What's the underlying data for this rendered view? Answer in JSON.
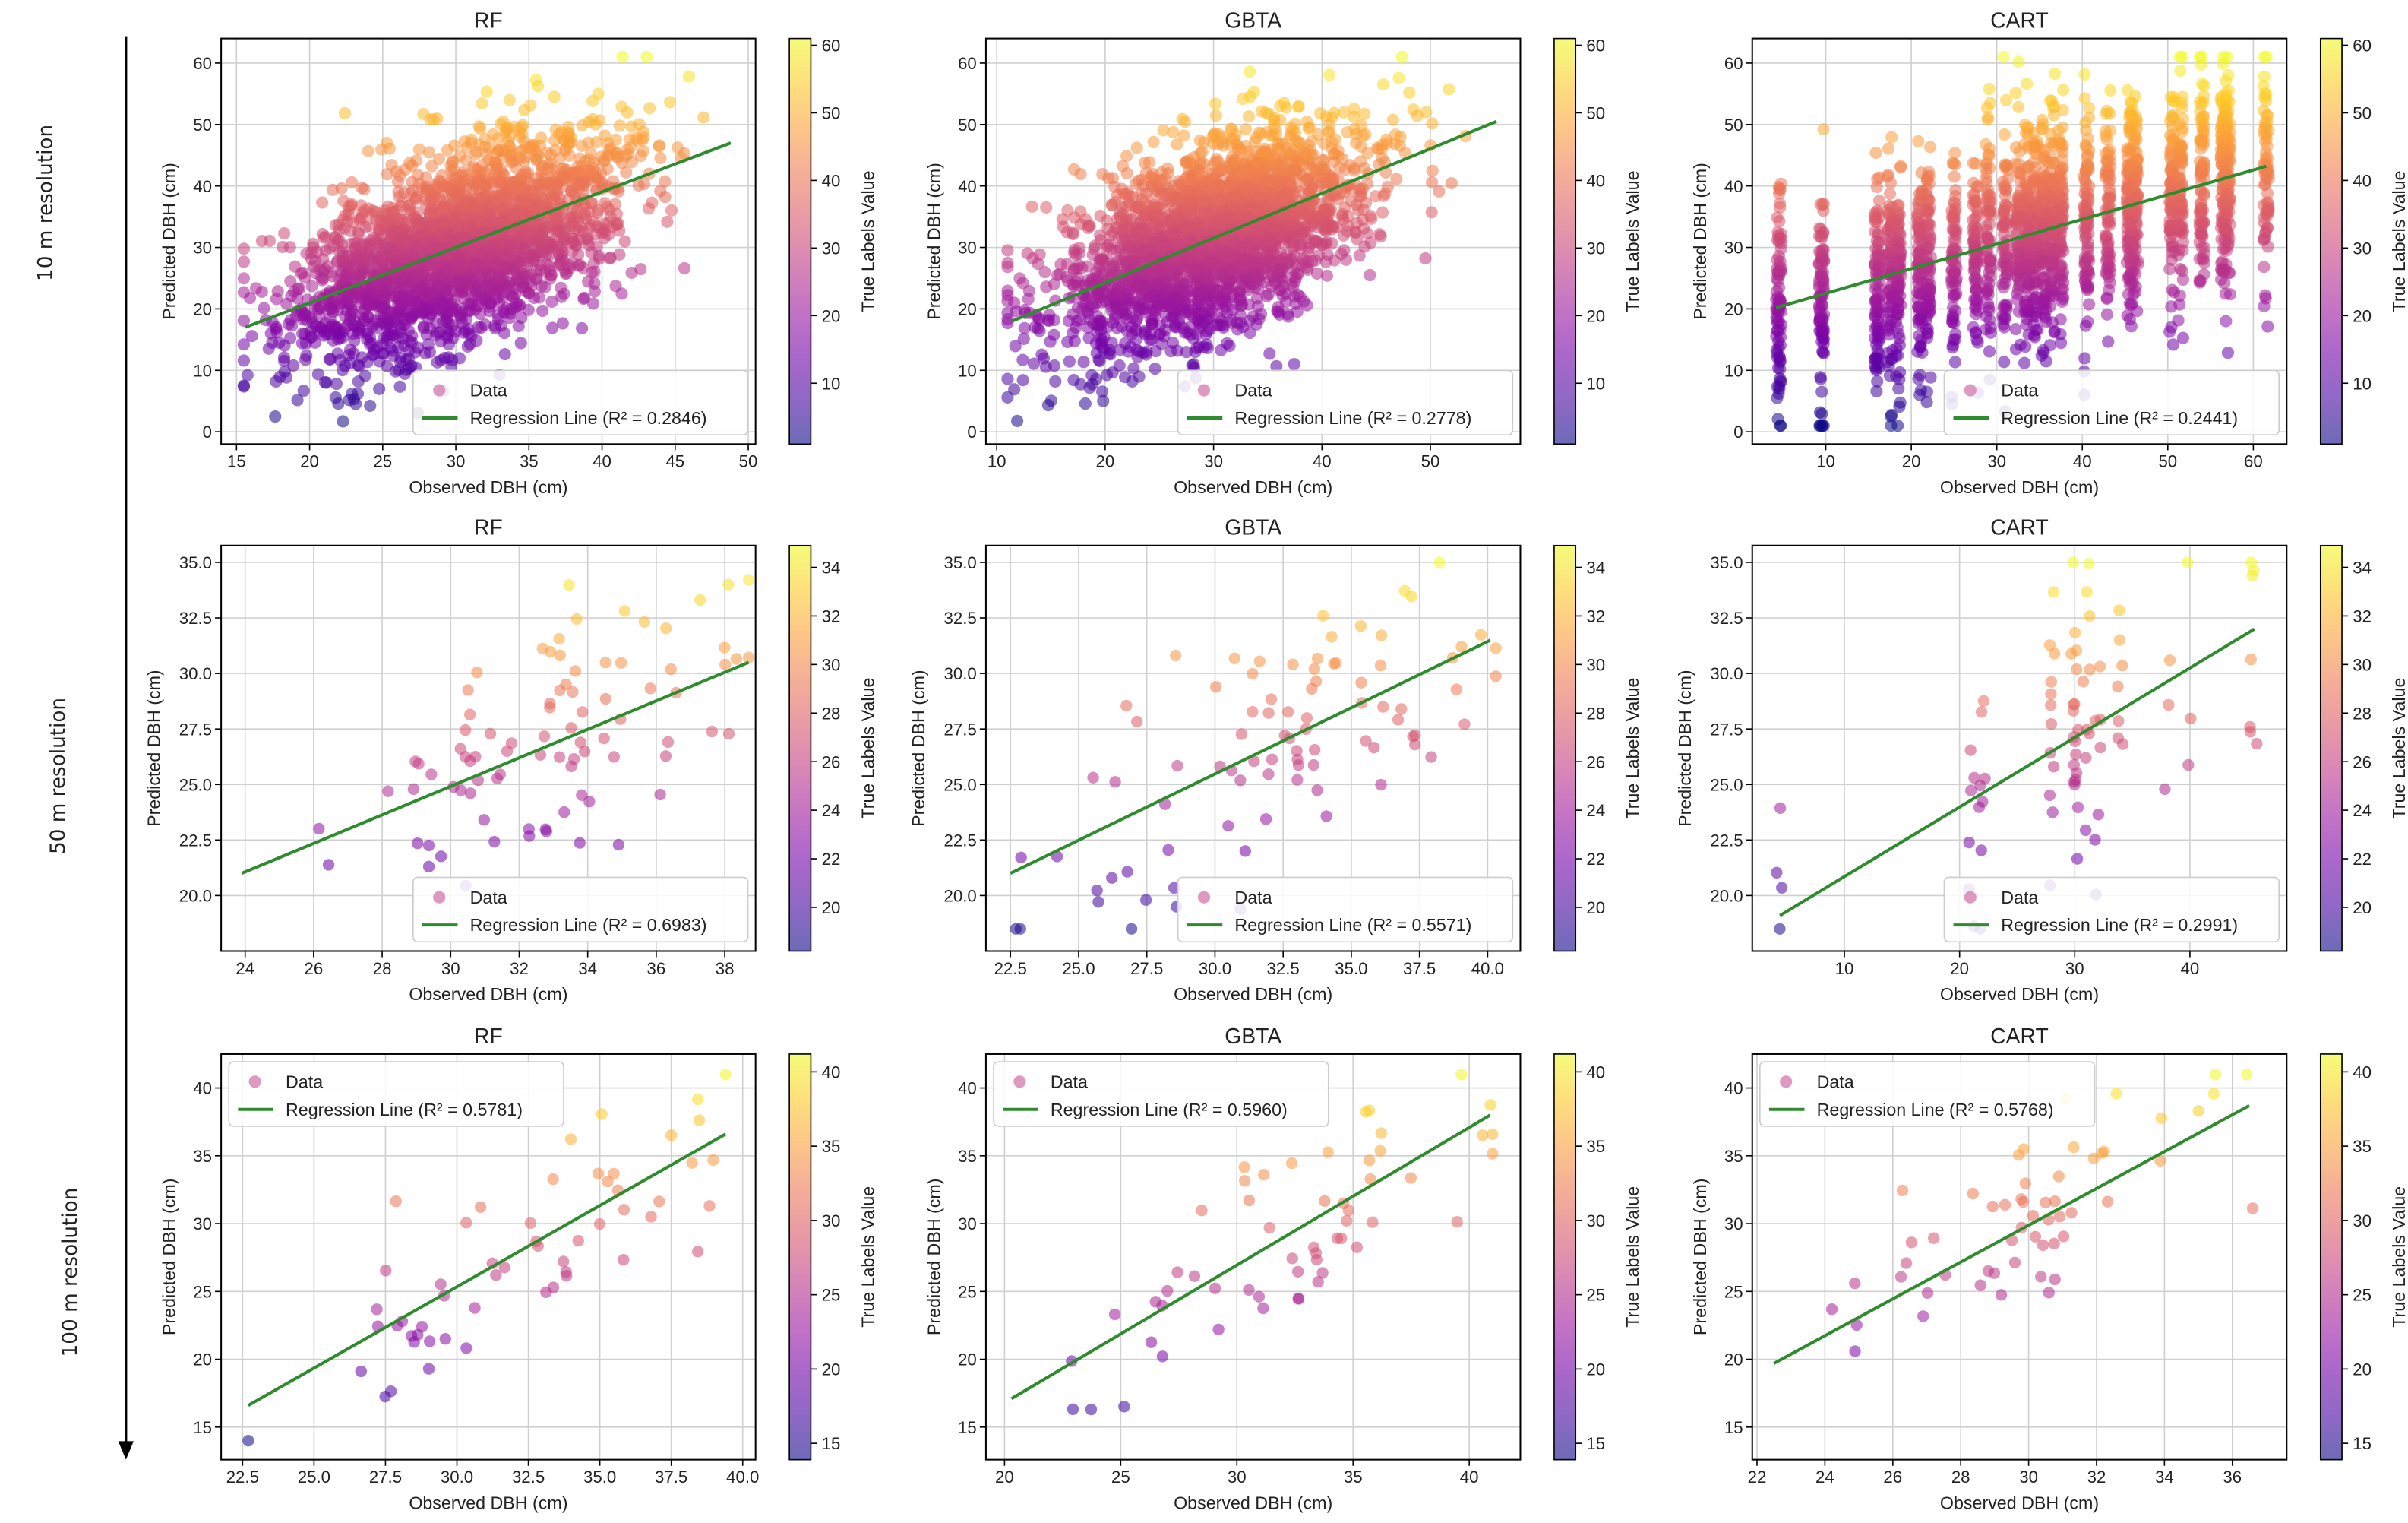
{
  "row_labels": [
    "10 m resolution",
    "50 m resolution",
    "100 m resolution"
  ],
  "colors": {
    "regression": "#2e8b2e",
    "grid": "#d0d0d0",
    "legend_marker": "#d77fb0"
  },
  "colormap": [
    "#0d0887",
    "#46039f",
    "#7201a8",
    "#9c179e",
    "#bd3786",
    "#d8576b",
    "#ed7953",
    "#fb9f3a",
    "#fdca26",
    "#f0f921"
  ],
  "chart_data": [
    {
      "type": "scatter",
      "row": 0,
      "col": 0,
      "title": "RF",
      "xlabel": "Observed DBH (cm)",
      "ylabel": "Predicted DBH (cm)",
      "colorbar_label": "True Labels Value",
      "xlim": [
        13.95,
        50.5
      ],
      "ylim": [
        -2,
        64
      ],
      "xticks": [
        15,
        20,
        25,
        30,
        35,
        40,
        45,
        50
      ],
      "yticks": [
        0,
        10,
        20,
        30,
        40,
        50,
        60
      ],
      "cbar_range": [
        1,
        61
      ],
      "cbar_ticks": [
        10,
        20,
        30,
        40,
        50,
        60
      ],
      "legend": {
        "placement": "lower-right",
        "data": "Data",
        "line": "Regression Line (R² = 0.2846)"
      },
      "r2": 0.2846,
      "regression": [
        [
          15.6,
          17.0
        ],
        [
          48.8,
          47.0
        ]
      ],
      "points_gen": {
        "n": 2500,
        "seed": 11,
        "x_mean": 30,
        "x_sd": 5.5,
        "x_range": [
          15.5,
          49
        ],
        "noise_sd": 7.5,
        "y_range": [
          1,
          61
        ]
      }
    },
    {
      "type": "scatter",
      "row": 0,
      "col": 1,
      "title": "GBTA",
      "xlabel": "Observed DBH (cm)",
      "ylabel": "Predicted DBH (cm)",
      "colorbar_label": "True Labels Value",
      "xlim": [
        9,
        58.3
      ],
      "ylim": [
        -2,
        64
      ],
      "xticks": [
        10,
        20,
        30,
        40,
        50
      ],
      "yticks": [
        0,
        10,
        20,
        30,
        40,
        50,
        60
      ],
      "cbar_range": [
        1,
        61
      ],
      "cbar_ticks": [
        10,
        20,
        30,
        40,
        50,
        60
      ],
      "legend": {
        "placement": "lower-right",
        "data": "Data",
        "line": "Regression Line (R² = 0.2778)"
      },
      "r2": 0.2778,
      "regression": [
        [
          11.4,
          18.0
        ],
        [
          56.1,
          50.5
        ]
      ],
      "points_gen": {
        "n": 2500,
        "seed": 22,
        "x_mean": 30,
        "x_sd": 7,
        "x_range": [
          11,
          56
        ],
        "noise_sd": 7.5,
        "y_range": [
          1,
          61
        ]
      }
    },
    {
      "type": "scatter",
      "row": 0,
      "col": 2,
      "title": "CART",
      "xlabel": "Observed DBH (cm)",
      "ylabel": "Predicted DBH (cm)",
      "colorbar_label": "True Labels Value",
      "xlim": [
        1.4,
        63.9
      ],
      "ylim": [
        -2,
        64
      ],
      "xticks": [
        10,
        20,
        30,
        40,
        50,
        60
      ],
      "yticks": [
        0,
        10,
        20,
        30,
        40,
        50,
        60
      ],
      "cbar_range": [
        1,
        61
      ],
      "cbar_ticks": [
        10,
        20,
        30,
        40,
        50,
        60
      ],
      "legend": {
        "placement": "lower-right",
        "data": "Data",
        "line": "Regression Line (R² = 0.2441)"
      },
      "r2": 0.2441,
      "regression": [
        [
          4.2,
          20.2
        ],
        [
          61.5,
          43.2
        ]
      ],
      "points_gen": {
        "n": 2200,
        "seed": 33,
        "x_levels": [
          4.5,
          9.5,
          16,
          17.5,
          18.5,
          21,
          22,
          25,
          27.5,
          29,
          31,
          32.5,
          33.5,
          34.5,
          35.5,
          36.5,
          37.5,
          40.5,
          43,
          45.5,
          46.2,
          50.5,
          51.5,
          54,
          56.5,
          57,
          61.5
        ],
        "x_mean": 32,
        "x_sd": 11,
        "noise_sd": 9,
        "y_range": [
          1,
          61
        ]
      }
    },
    {
      "type": "scatter",
      "row": 1,
      "col": 0,
      "title": "RF",
      "xlabel": "Observed DBH (cm)",
      "ylabel": "Predicted DBH (cm)",
      "colorbar_label": "True Labels Value",
      "xlim": [
        23.3,
        38.9
      ],
      "ylim": [
        17.5,
        35.76
      ],
      "xticks": [
        24,
        26,
        28,
        30,
        32,
        34,
        36,
        38
      ],
      "yticks": [
        20.0,
        22.5,
        25.0,
        27.5,
        30.0,
        32.5,
        35.0
      ],
      "ytick_fmt": 1,
      "cbar_range": [
        18.2,
        34.9
      ],
      "cbar_ticks": [
        20,
        22,
        24,
        26,
        28,
        30,
        32,
        34
      ],
      "legend": {
        "placement": "lower-right",
        "data": "Data",
        "line": "Regression Line (R² = 0.6983)"
      },
      "r2": 0.6983,
      "regression": [
        [
          23.9,
          21.0
        ],
        [
          38.7,
          30.5
        ]
      ],
      "points_gen": {
        "n": 85,
        "seed": 44,
        "x_mean": 32.5,
        "x_sd": 3.3,
        "x_range": [
          23.9,
          38.7
        ],
        "noise_sd": 2.8,
        "y_range": [
          18.5,
          35
        ]
      }
    },
    {
      "type": "scatter",
      "row": 1,
      "col": 1,
      "title": "GBTA",
      "xlabel": "Observed DBH (cm)",
      "ylabel": "Predicted DBH (cm)",
      "colorbar_label": "True Labels Value",
      "xlim": [
        21.6,
        41.2
      ],
      "ylim": [
        17.5,
        35.76
      ],
      "xticks": [
        22.5,
        25.0,
        27.5,
        30.0,
        32.5,
        35.0,
        37.5,
        40.0
      ],
      "xtick_fmt": 1,
      "yticks": [
        20.0,
        22.5,
        25.0,
        27.5,
        30.0,
        32.5,
        35.0
      ],
      "ytick_fmt": 1,
      "cbar_range": [
        18.2,
        34.9
      ],
      "cbar_ticks": [
        20,
        22,
        24,
        26,
        28,
        30,
        32,
        34
      ],
      "legend": {
        "placement": "lower-right",
        "data": "Data",
        "line": "Regression Line (R² = 0.5571)"
      },
      "r2": 0.5571,
      "regression": [
        [
          22.5,
          21.0
        ],
        [
          40.1,
          31.5
        ]
      ],
      "points_gen": {
        "n": 85,
        "seed": 55,
        "x_mean": 32,
        "x_sd": 3.8,
        "x_range": [
          22.3,
          40.3
        ],
        "noise_sd": 3,
        "y_range": [
          18.5,
          35
        ]
      }
    },
    {
      "type": "scatter",
      "row": 1,
      "col": 2,
      "title": "CART",
      "xlabel": "Observed DBH (cm)",
      "ylabel": "Predicted DBH (cm)",
      "colorbar_label": "True Labels Value",
      "xlim": [
        2.0,
        48.4
      ],
      "ylim": [
        17.5,
        35.76
      ],
      "xticks": [
        10,
        20,
        30,
        40
      ],
      "yticks": [
        20.0,
        22.5,
        25.0,
        27.5,
        30.0,
        32.5,
        35.0
      ],
      "ytick_fmt": 1,
      "cbar_range": [
        18.2,
        34.9
      ],
      "cbar_ticks": [
        20,
        22,
        24,
        26,
        28,
        30,
        32,
        34
      ],
      "legend": {
        "placement": "lower-right",
        "data": "Data",
        "line": "Regression Line (R² = 0.2991)"
      },
      "r2": 0.2991,
      "regression": [
        [
          4.4,
          19.1
        ],
        [
          45.6,
          32.0
        ]
      ],
      "points_gen": {
        "n": 85,
        "seed": 66,
        "x_levels": [
          4.4,
          21,
          22,
          28,
          28,
          30,
          30,
          30,
          31,
          32,
          34,
          38,
          40,
          45.5
        ],
        "x_mean": 30,
        "x_sd": 5,
        "noise_sd": 3,
        "y_range": [
          18.5,
          35
        ]
      }
    },
    {
      "type": "scatter",
      "row": 2,
      "col": 0,
      "title": "RF",
      "xlabel": "Observed DBH (cm)",
      "ylabel": "Predicted DBH (cm)",
      "colorbar_label": "True Labels Value",
      "xlim": [
        21.75,
        40.45
      ],
      "ylim": [
        12.6,
        42.5
      ],
      "xticks": [
        22.5,
        25.0,
        27.5,
        30.0,
        32.5,
        35.0,
        37.5,
        40.0
      ],
      "xtick_fmt": 1,
      "yticks": [
        15,
        20,
        25,
        30,
        35,
        40
      ],
      "cbar_range": [
        13.9,
        41.2
      ],
      "cbar_ticks": [
        15,
        20,
        25,
        30,
        35,
        40
      ],
      "legend": {
        "placement": "upper-left",
        "data": "Data",
        "line": "Regression Line (R² = 0.5781)"
      },
      "r2": 0.5781,
      "regression": [
        [
          22.7,
          16.6
        ],
        [
          39.4,
          36.6
        ]
      ],
      "points_gen": {
        "n": 55,
        "seed": 77,
        "x_mean": 32,
        "x_sd": 3.8,
        "x_range": [
          22.7,
          39.4
        ],
        "noise_sd": 3.5,
        "y_range": [
          14,
          41
        ]
      }
    },
    {
      "type": "scatter",
      "row": 2,
      "col": 1,
      "title": "GBTA",
      "xlabel": "Observed DBH (cm)",
      "ylabel": "Predicted DBH (cm)",
      "colorbar_label": "True Labels Value",
      "xlim": [
        19.2,
        42.2
      ],
      "ylim": [
        12.6,
        42.5
      ],
      "xticks": [
        20,
        25,
        30,
        35,
        40
      ],
      "yticks": [
        15,
        20,
        25,
        30,
        35,
        40
      ],
      "cbar_range": [
        13.9,
        41.2
      ],
      "cbar_ticks": [
        15,
        20,
        25,
        30,
        35,
        40
      ],
      "legend": {
        "placement": "upper-left",
        "data": "Data",
        "line": "Regression Line (R² = 0.5960)"
      },
      "r2": 0.596,
      "regression": [
        [
          20.3,
          17.1
        ],
        [
          40.9,
          38.0
        ]
      ],
      "points_gen": {
        "n": 55,
        "seed": 88,
        "x_mean": 32,
        "x_sd": 4.5,
        "x_range": [
          20.3,
          41
        ],
        "noise_sd": 3.5,
        "y_range": [
          14,
          41
        ]
      }
    },
    {
      "type": "scatter",
      "row": 2,
      "col": 2,
      "title": "CART",
      "xlabel": "Observed DBH (cm)",
      "ylabel": "Predicted DBH (cm)",
      "colorbar_label": "True Labels Value",
      "xlim": [
        21.86,
        37.6
      ],
      "ylim": [
        12.6,
        42.5
      ],
      "xticks": [
        22,
        24,
        26,
        28,
        30,
        32,
        34,
        36
      ],
      "yticks": [
        15,
        20,
        25,
        30,
        35,
        40
      ],
      "cbar_range": [
        13.9,
        41.2
      ],
      "cbar_ticks": [
        15,
        20,
        25,
        30,
        35,
        40
      ],
      "legend": {
        "placement": "upper-left",
        "data": "Data",
        "line": "Regression Line (R² = 0.5768)"
      },
      "r2": 0.5768,
      "regression": [
        [
          22.5,
          19.7
        ],
        [
          36.5,
          38.7
        ]
      ],
      "points_gen": {
        "n": 55,
        "seed": 99,
        "x_mean": 30.5,
        "x_sd": 3.3,
        "x_range": [
          22.5,
          36.6
        ],
        "noise_sd": 3.5,
        "y_range": [
          14,
          41
        ]
      }
    }
  ]
}
